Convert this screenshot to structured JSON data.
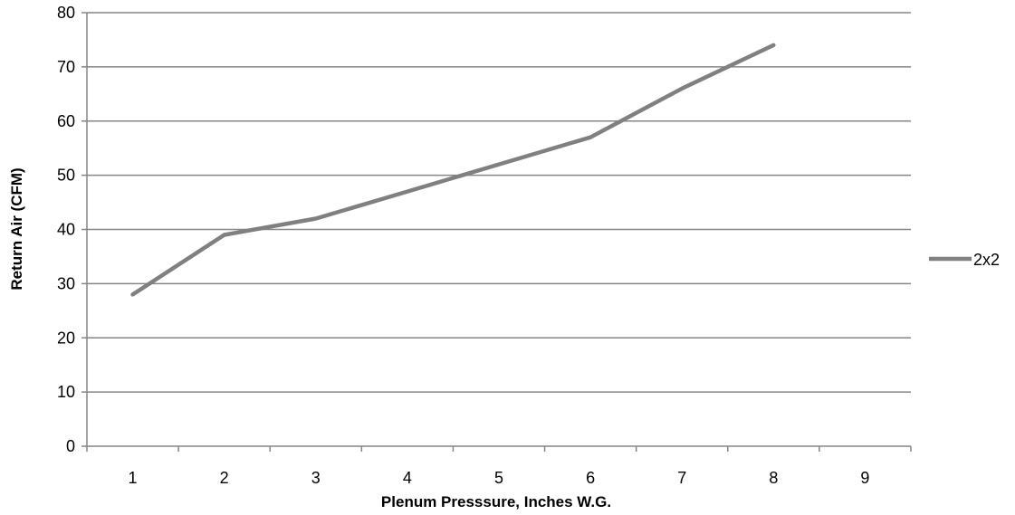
{
  "chart_data": {
    "type": "line",
    "title": "",
    "xlabel": "Plenum  Presssure, Inches W.G.",
    "ylabel": "Return Air (CFM)",
    "categories": [
      "1",
      "2",
      "3",
      "4",
      "5",
      "6",
      "7",
      "8",
      "9"
    ],
    "yticks": [
      "0",
      "10",
      "20",
      "30",
      "40",
      "50",
      "60",
      "70",
      "80"
    ],
    "ylim": [
      0,
      80
    ],
    "grid": true,
    "legend_position": "right",
    "series": [
      {
        "name": "2x2",
        "color": "#808080",
        "values": [
          28,
          39,
          42,
          47,
          52,
          57,
          66,
          74,
          null
        ]
      }
    ]
  }
}
